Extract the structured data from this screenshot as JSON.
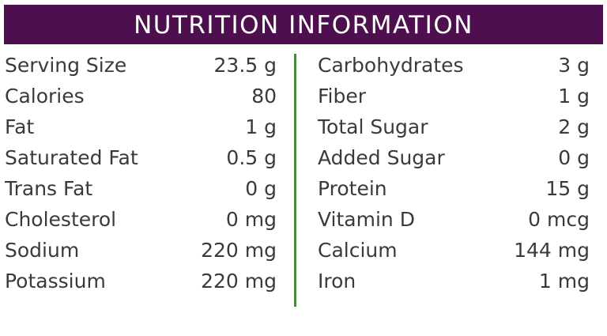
{
  "header": {
    "title": "NUTRITION INFORMATION"
  },
  "left": [
    [
      "Serving Size",
      "23.5 g"
    ],
    [
      "Calories",
      "80"
    ],
    [
      "Fat",
      "1 g"
    ],
    [
      "Saturated Fat",
      "0.5 g"
    ],
    [
      "Trans Fat",
      "0 g"
    ],
    [
      "Cholesterol",
      "0 mg"
    ],
    [
      "Sodium",
      "220 mg"
    ],
    [
      "Potassium",
      "220 mg"
    ]
  ],
  "right": [
    [
      "Carbohydrates",
      "3 g"
    ],
    [
      "Fiber",
      "1 g"
    ],
    [
      "Total Sugar",
      "2 g"
    ],
    [
      "Added Sugar",
      "0 g"
    ],
    [
      "Protein",
      "15 g"
    ],
    [
      "Vitamin D",
      "0 mcg"
    ],
    [
      "Calcium",
      "144 mg"
    ],
    [
      "Iron",
      "1 mg"
    ]
  ]
}
